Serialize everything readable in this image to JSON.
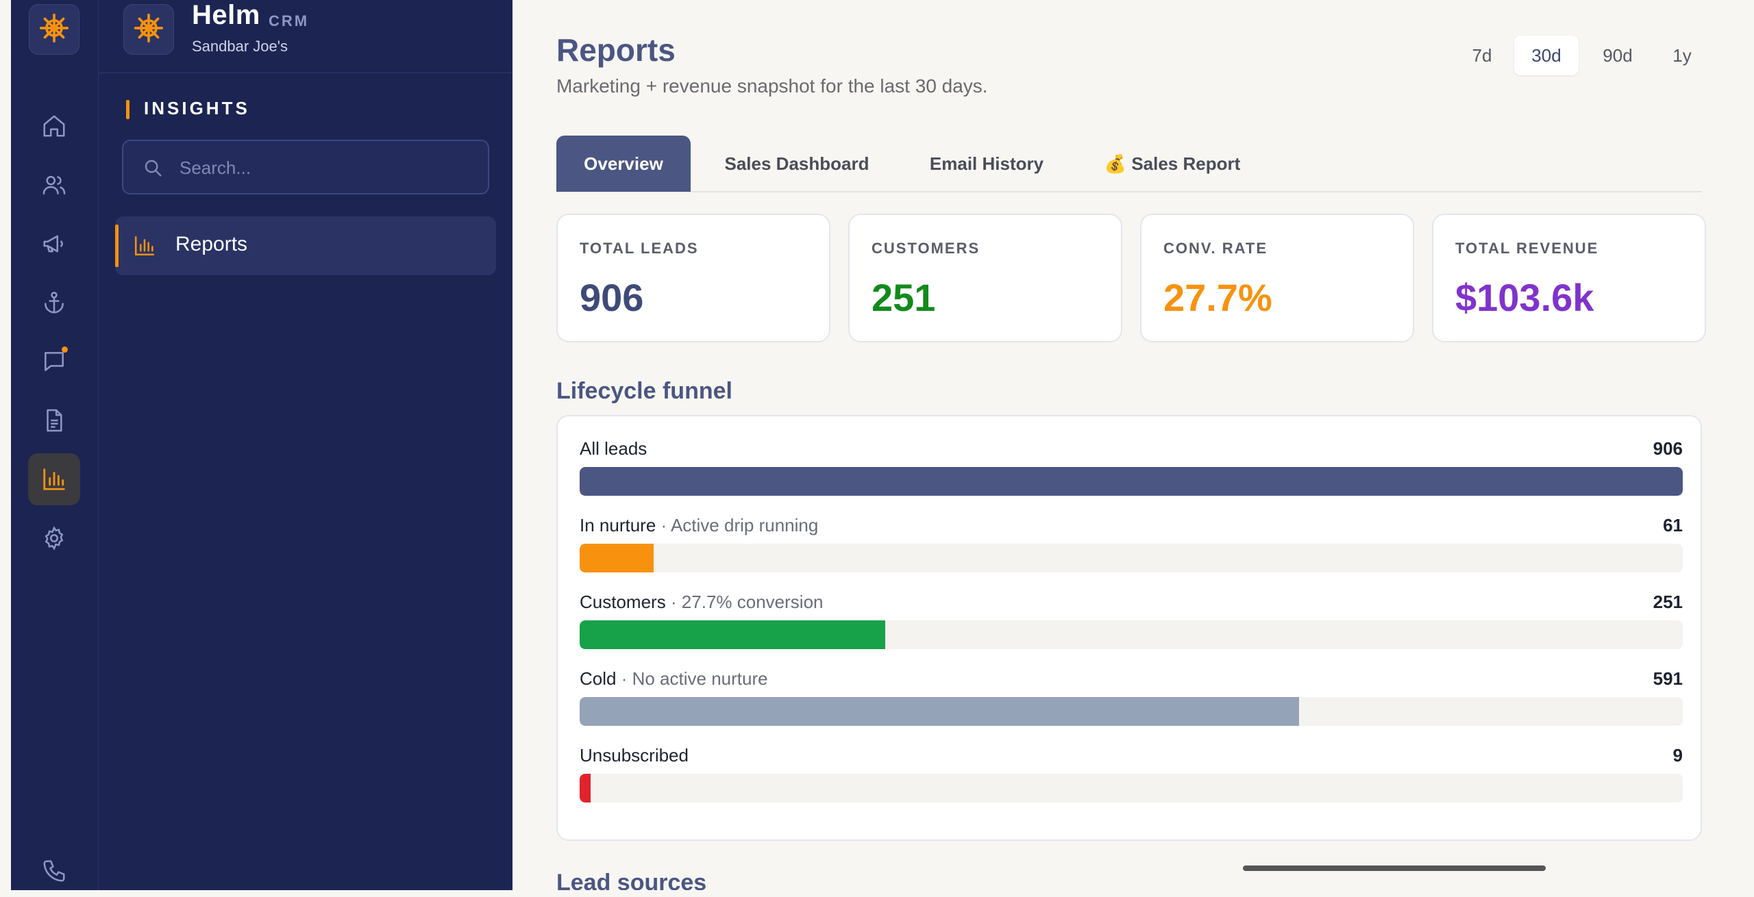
{
  "app": {
    "name": "Helm",
    "tag": "CRM",
    "business": "Sandbar Joe's",
    "accent": "#f7920f",
    "brand_color": "#1c2451"
  },
  "rail": {
    "icons": [
      "home-icon",
      "users-icon",
      "megaphone-icon",
      "anchor-icon",
      "chat-icon",
      "document-icon",
      "bar-chart-icon",
      "gear-icon",
      "phone-icon"
    ],
    "active": "bar-chart-icon"
  },
  "sidebar": {
    "section_label": "INSIGHTS",
    "search_placeholder": "Search...",
    "items": [
      {
        "label": "Reports",
        "icon": "bar-chart-icon",
        "active": true
      }
    ]
  },
  "page": {
    "title": "Reports",
    "subtitle": "Marketing + revenue snapshot for the last 30 days.",
    "ranges": [
      "7d",
      "30d",
      "90d",
      "1y"
    ],
    "active_range": "30d"
  },
  "tabs": [
    {
      "label": "Overview",
      "active": true
    },
    {
      "label": "Sales Dashboard",
      "active": false
    },
    {
      "label": "Email History",
      "active": false
    },
    {
      "label": "💰 Sales Report",
      "active": false
    }
  ],
  "kpis": [
    {
      "label": "TOTAL LEADS",
      "value": "906",
      "color": "#3e4a78"
    },
    {
      "label": "CUSTOMERS",
      "value": "251",
      "color": "#138a1c"
    },
    {
      "label": "CONV. RATE",
      "value": "27.7%",
      "color": "#f7920f"
    },
    {
      "label": "TOTAL REVENUE",
      "value": "$103.6k",
      "color": "#8033cc"
    }
  ],
  "funnel": {
    "title": "Lifecycle funnel",
    "rows": [
      {
        "name": "All leads",
        "note": "",
        "count": "906",
        "value": 906,
        "color": "#4b5682"
      },
      {
        "name": "In nurture",
        "note": " · Active drip running",
        "count": "61",
        "value": 61,
        "color": "#f7920f"
      },
      {
        "name": "Customers",
        "note": " · 27.7% conversion",
        "count": "251",
        "value": 251,
        "color": "#17a148"
      },
      {
        "name": "Cold",
        "note": " · No active nurture",
        "count": "591",
        "value": 591,
        "color": "#94a3b8"
      },
      {
        "name": "Unsubscribed",
        "note": "",
        "count": "9",
        "value": 9,
        "color": "#e0232c"
      }
    ],
    "max": 906
  },
  "next_section": {
    "title": "Lead sources"
  }
}
